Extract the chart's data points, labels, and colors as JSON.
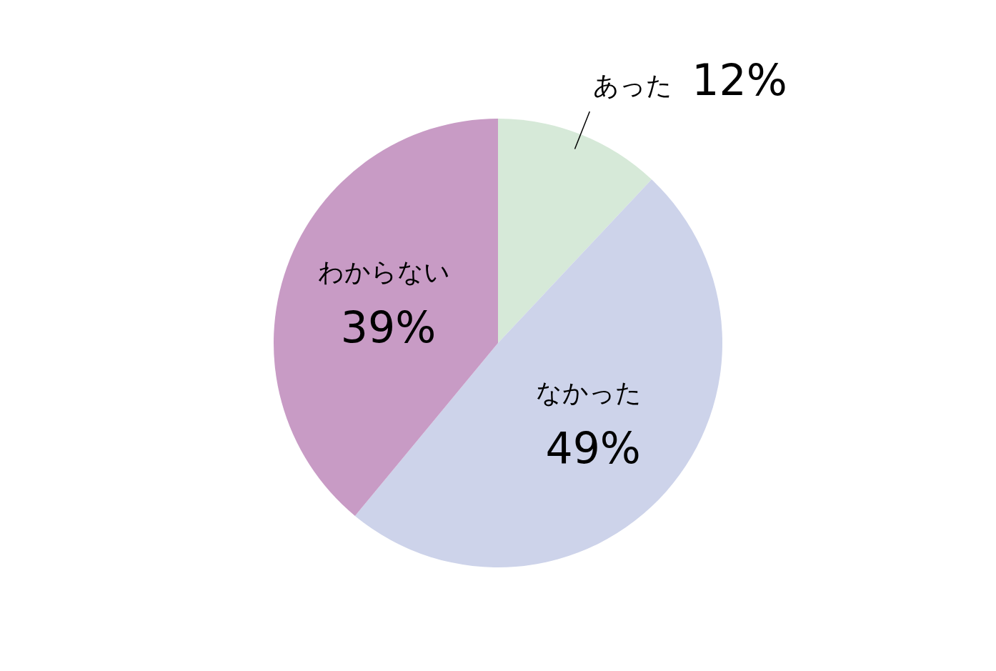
{
  "chart_data": {
    "type": "pie",
    "categories": [
      "あった",
      "なかった",
      "わからない"
    ],
    "values": [
      12,
      49,
      39
    ],
    "colors": [
      "#d6e9d8",
      "#cdd3ea",
      "#c89bc5"
    ],
    "value_labels": [
      "12%",
      "49%",
      "39%"
    ]
  }
}
